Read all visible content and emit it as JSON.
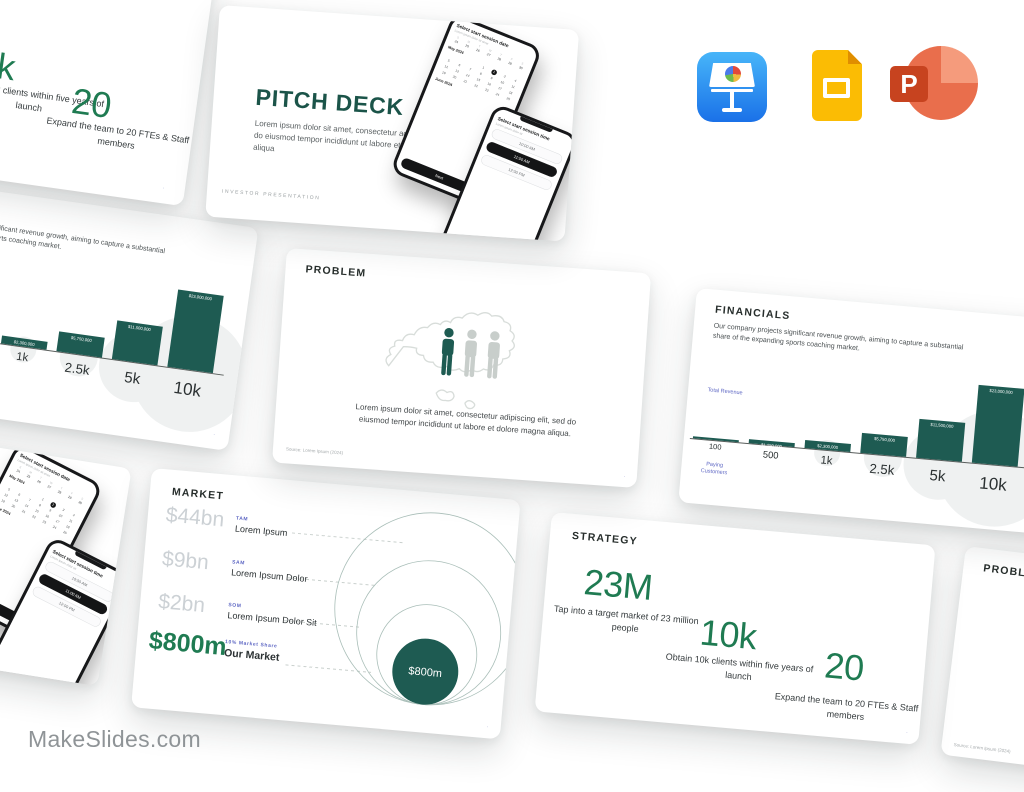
{
  "watermark": "MakeSlides.com",
  "app_icons": {
    "keynote": "Keynote",
    "google_slides": "Google Slides",
    "powerpoint": "PowerPoint",
    "powerpoint_letter": "P"
  },
  "slides": {
    "page_marker": "·",
    "pitch_deck": {
      "title": "PITCH DECK",
      "body": "Lorem ipsum dolor sit amet, consectetur adipiscing elit, sed do eiusmod tempor incididunt ut labore et dolore magna aliqua",
      "footer": "INVESTOR PRESENTATION",
      "phone_date": {
        "header": "Select start session date",
        "subheader": "Lorem ipsum dolor sit amet",
        "weekdays": "S M T W T F S",
        "prev_week": "24 25 26 27 28 29 30",
        "month_top": "May 2024",
        "month_bottom": "June 2024",
        "selected_day": 2,
        "cta": "Next"
      },
      "phone_time": {
        "header": "Select start session time",
        "subheader": "Lorem ipsum dolor sit",
        "options": [
          "10:00 AM",
          "11:00 AM",
          "12:00 PM"
        ],
        "selected_index": 1
      }
    },
    "problem": {
      "title": "PROBLEM",
      "body": "Lorem ipsum dolor sit amet, consectetur adipiscing elit, sed do eiusmod tempor incididunt ut labore et dolore magna aliqua.",
      "source": "Source: Lorem Ipsum (2024)"
    },
    "financials": {
      "title": "FINANCIALS",
      "body": "Our company projects significant revenue growth, aiming to capture a substantial share of the expanding sports coaching market.",
      "y_axis_label": "Total Revenue",
      "x_axis_label": "Paying Customers",
      "chart": {
        "type": "bar",
        "categories": [
          "100",
          "500",
          "1k",
          "2.5k",
          "5k",
          "10k"
        ],
        "values": [
          230000,
          1150000,
          2300000,
          5750000,
          11500000,
          23000000
        ],
        "bar_labels": [
          "",
          "$1,150,000",
          "$2,300,000",
          "$5,750,000",
          "$11,500,000",
          "$23,000,000"
        ],
        "max_value": 23000000
      }
    },
    "market": {
      "title": "MARKET",
      "rows": [
        {
          "amount": "$44bn",
          "tag": "TAM",
          "label": "Lorem Ipsum"
        },
        {
          "amount": "$9bn",
          "tag": "SAM",
          "label": "Lorem Ipsum Dolor"
        },
        {
          "amount": "$2bn",
          "tag": "SOM",
          "label": "Lorem Ipsum Dolor Sit"
        },
        {
          "amount": "$800m",
          "tag": "10% Market Share",
          "label": "Our Market"
        }
      ],
      "bubble_label": "$800m"
    },
    "strategy": {
      "title": "STRATEGY",
      "stats": [
        {
          "value": "23M",
          "desc": "Tap into a target market of 23 million people"
        },
        {
          "value": "10k",
          "desc": "Obtain 10k clients within five years of launch"
        },
        {
          "value": "20",
          "desc": "Expand the team to 20 FTEs & Staff members"
        }
      ]
    }
  }
}
